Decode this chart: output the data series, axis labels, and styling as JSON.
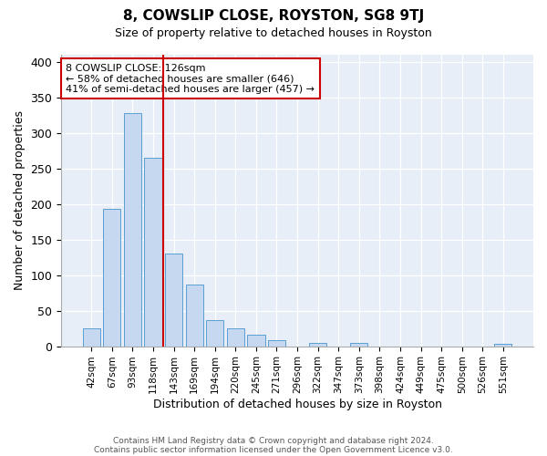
{
  "title": "8, COWSLIP CLOSE, ROYSTON, SG8 9TJ",
  "subtitle": "Size of property relative to detached houses in Royston",
  "xlabel": "Distribution of detached houses by size in Royston",
  "ylabel": "Number of detached properties",
  "bar_labels": [
    "42sqm",
    "67sqm",
    "93sqm",
    "118sqm",
    "143sqm",
    "169sqm",
    "194sqm",
    "220sqm",
    "245sqm",
    "271sqm",
    "296sqm",
    "322sqm",
    "347sqm",
    "373sqm",
    "398sqm",
    "424sqm",
    "449sqm",
    "475sqm",
    "500sqm",
    "526sqm",
    "551sqm"
  ],
  "bar_values": [
    25,
    193,
    328,
    265,
    130,
    87,
    37,
    25,
    16,
    8,
    0,
    4,
    0,
    4,
    0,
    0,
    0,
    0,
    0,
    0,
    3
  ],
  "bar_color": "#c5d8f0",
  "bar_edge_color": "#5a9fd4",
  "vline_x": 3.5,
  "vline_color": "#cc0000",
  "annotation_text": "8 COWSLIP CLOSE: 126sqm\n← 58% of detached houses are smaller (646)\n41% of semi-detached houses are larger (457) →",
  "annotation_box_color": "#ffffff",
  "annotation_box_edge": "#cc0000",
  "ylim": [
    0,
    410
  ],
  "yticks": [
    0,
    50,
    100,
    150,
    200,
    250,
    300,
    350,
    400
  ],
  "footer1": "Contains HM Land Registry data © Crown copyright and database right 2024.",
  "footer2": "Contains public sector information licensed under the Open Government Licence v3.0.",
  "bg_color": "#ffffff",
  "plot_bg_color": "#e8eef8"
}
